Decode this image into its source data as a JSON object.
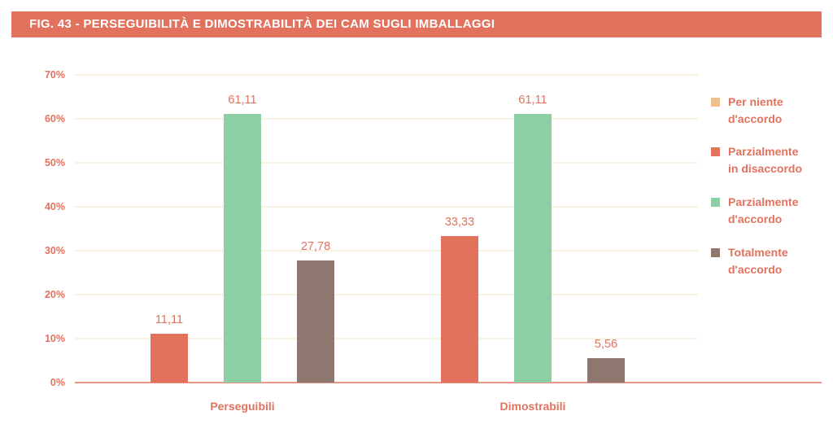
{
  "header": {
    "title": "FIG. 43 - PERSEGUIBILITÀ E DIMOSTRABILITÀ DEI CAM SUGLI IMBALLAGGI"
  },
  "chart_data": {
    "type": "bar",
    "title": "FIG. 43 - PERSEGUIBILITÀ E DIMOSTRABILITÀ DEI CAM SUGLI IMBALLAGGI",
    "categories": [
      "Perseguibili",
      "Dimostrabili"
    ],
    "ylim": [
      0,
      70
    ],
    "yticks": [
      "0%",
      "10%",
      "20%",
      "30%",
      "40%",
      "50%",
      "60%",
      "70%"
    ],
    "grid": true,
    "legend_position": "right",
    "series": [
      {
        "name": [
          "Per niente",
          "d'accordo"
        ],
        "color": "#f0bf94",
        "values": [
          null,
          null
        ],
        "labels": [
          "",
          ""
        ]
      },
      {
        "name": [
          "Parzialmente",
          "in disaccordo"
        ],
        "color": "#e2725e",
        "values": [
          11.11,
          33.33
        ],
        "labels": [
          "11,11",
          "33,33"
        ]
      },
      {
        "name": [
          "Parzialmente",
          "d'accordo"
        ],
        "color": "#8fcfa6",
        "values": [
          61.11,
          61.11
        ],
        "labels": [
          "61,11",
          "61,11"
        ]
      },
      {
        "name": [
          "Totalmente",
          "d'accordo"
        ],
        "color": "#8e776f",
        "values": [
          27.78,
          5.56
        ],
        "labels": [
          "27,78",
          "5,56"
        ]
      }
    ]
  }
}
